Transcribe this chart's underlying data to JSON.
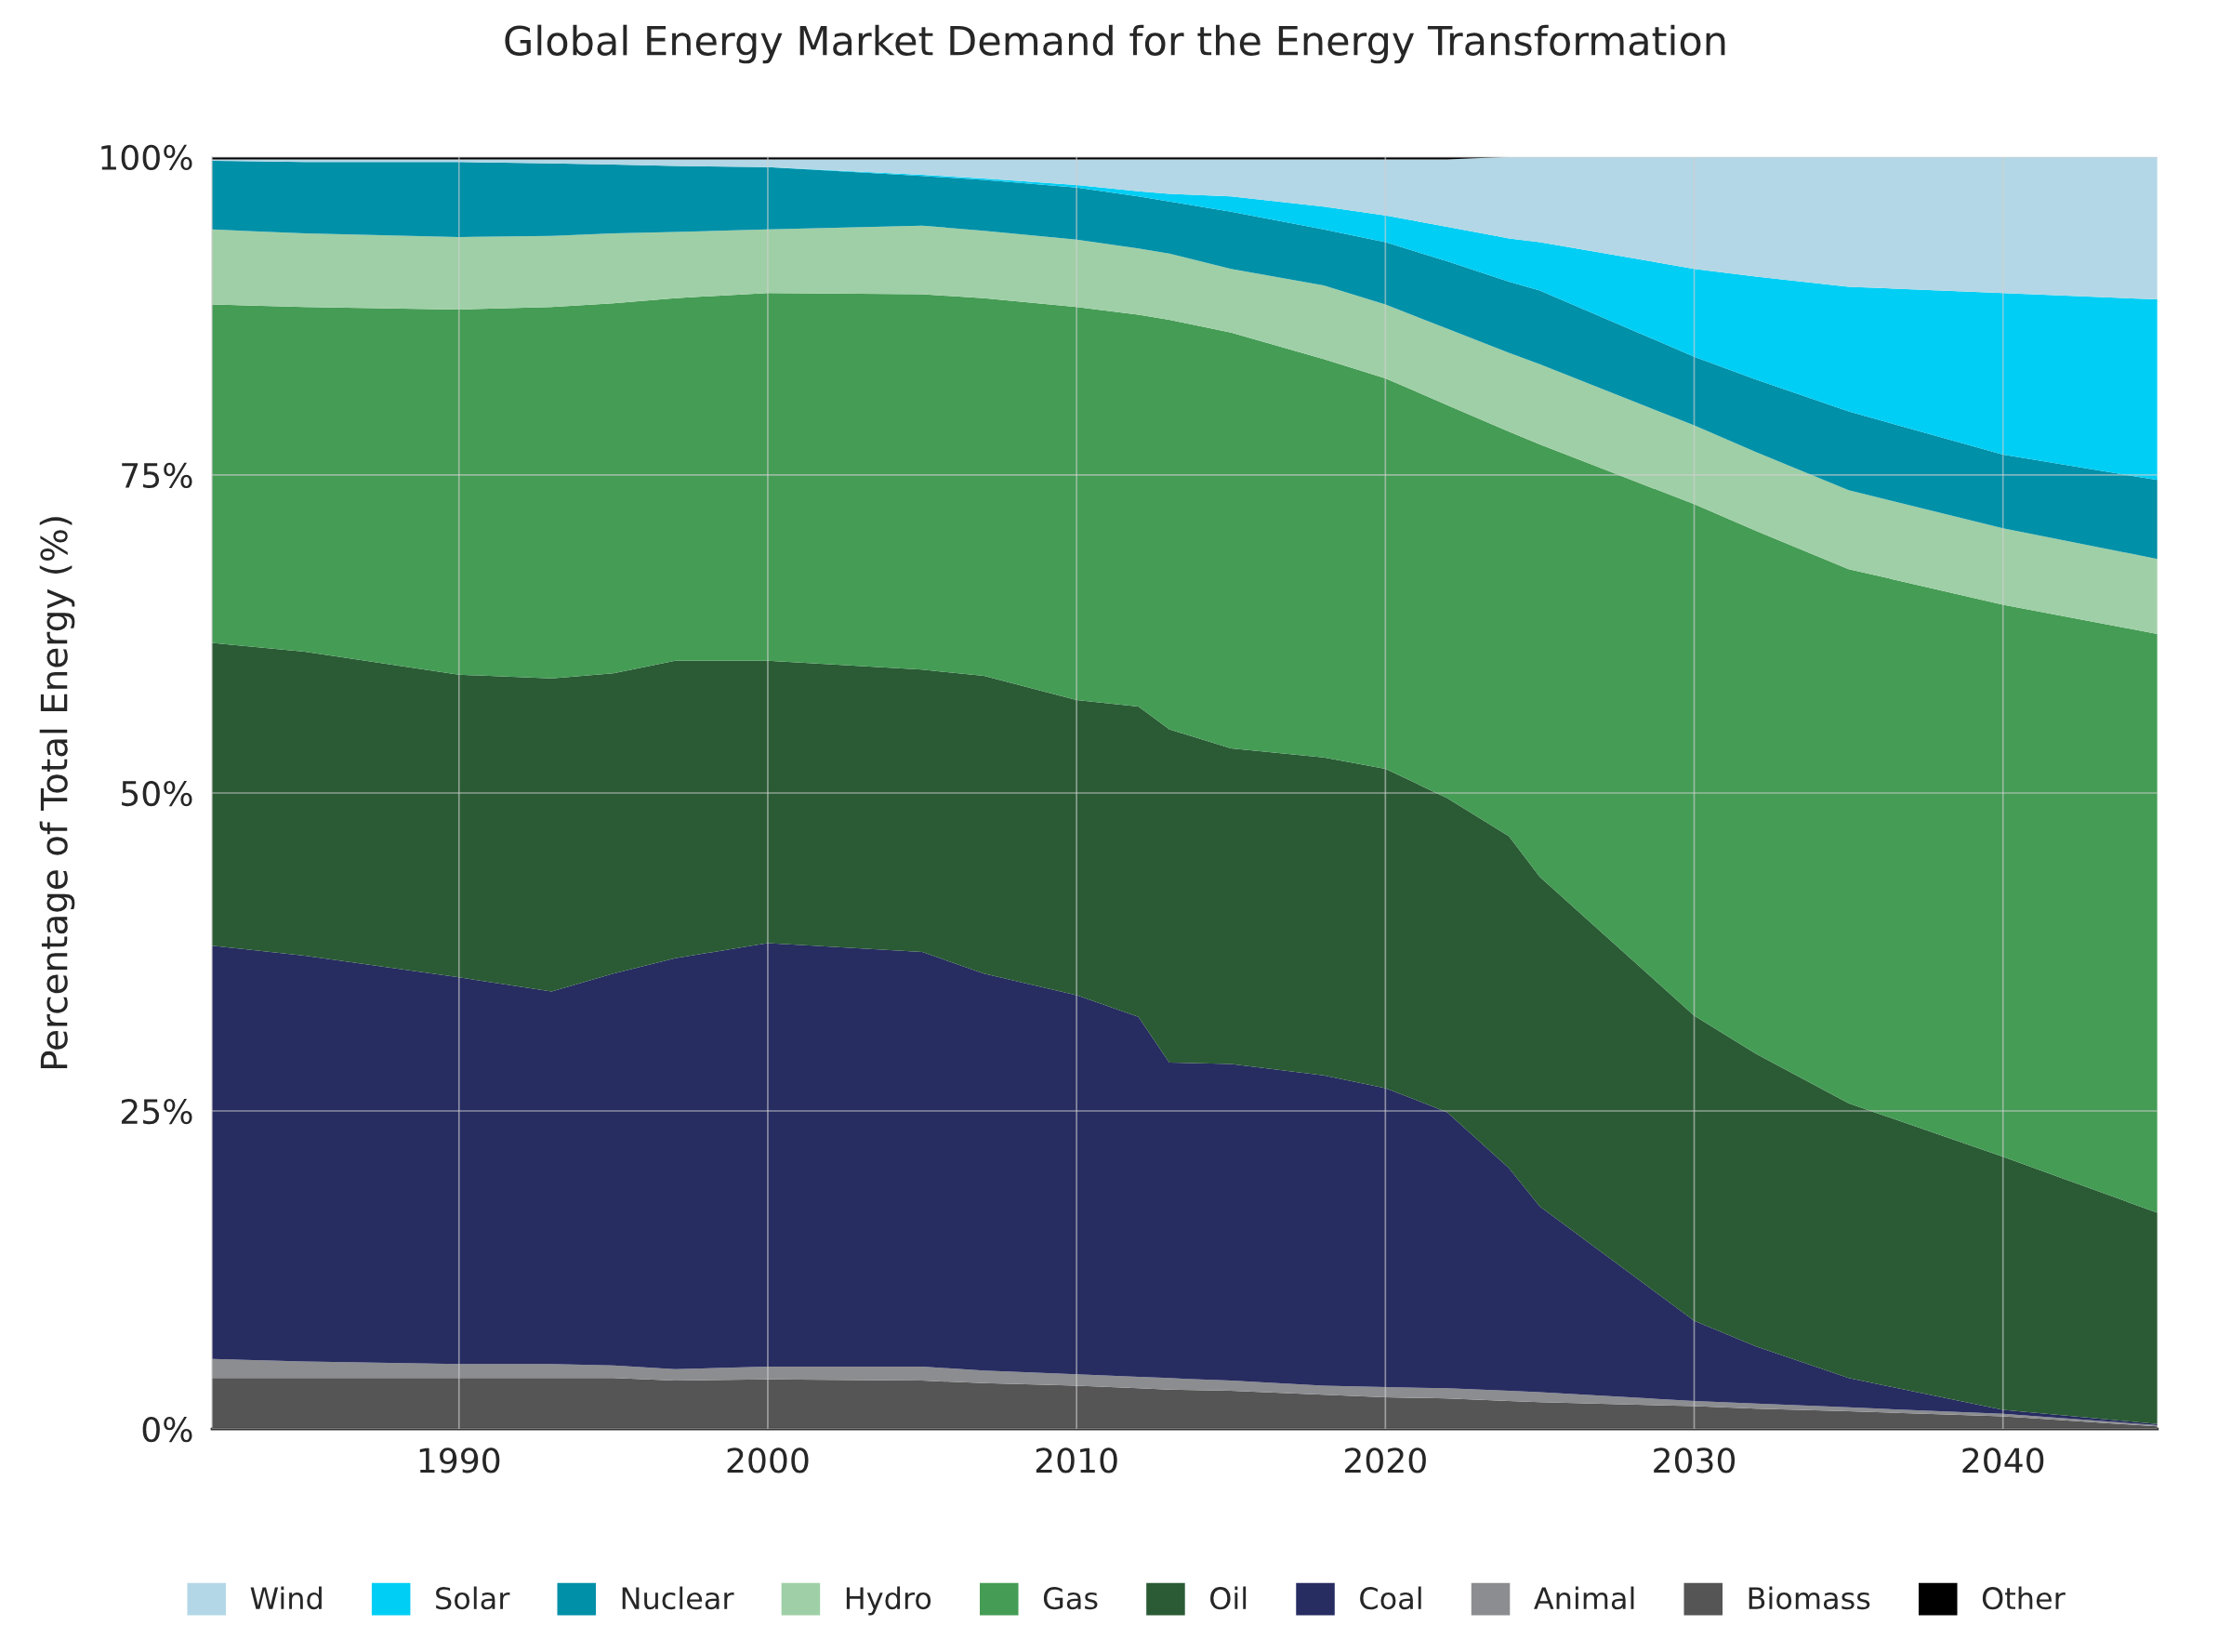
{
  "chart_data": {
    "type": "area",
    "stacked": true,
    "title": "Global Energy Market Demand for the Energy Transformation",
    "ylabel": "Percentage of Total Energy (%)",
    "x": [
      1982,
      1985,
      1990,
      1993,
      1995,
      1997,
      2000,
      2005,
      2007,
      2010,
      2012,
      2013,
      2015,
      2018,
      2020,
      2022,
      2024,
      2025,
      2030,
      2032,
      2035,
      2040,
      2045
    ],
    "xlim": [
      1982,
      2045
    ],
    "xticks": [
      1990,
      2000,
      2010,
      2020,
      2030,
      2040
    ],
    "ylim": [
      0,
      100
    ],
    "yticks": [
      {
        "value": 0,
        "label": "0%"
      },
      {
        "value": 25,
        "label": "25%"
      },
      {
        "value": 50,
        "label": "50%"
      },
      {
        "value": 75,
        "label": "75%"
      },
      {
        "value": 100,
        "label": "100%"
      }
    ],
    "grid": true,
    "legend": "bottom",
    "series": [
      {
        "name": "Biomass",
        "color": "#555555",
        "values": [
          4.0,
          4.0,
          4.0,
          4.0,
          4.0,
          3.8,
          3.9,
          3.8,
          3.6,
          3.4,
          3.2,
          3.1,
          3.0,
          2.7,
          2.5,
          2.4,
          2.2,
          2.1,
          1.8,
          1.6,
          1.4,
          1.0,
          0.2
        ]
      },
      {
        "name": "Animal",
        "color": "#8c8d90",
        "values": [
          1.5,
          1.3,
          1.1,
          1.1,
          1.0,
          0.9,
          1.0,
          1.1,
          1.0,
          0.9,
          0.9,
          0.9,
          0.8,
          0.7,
          0.8,
          0.8,
          0.8,
          0.8,
          0.4,
          0.4,
          0.3,
          0.2,
          0.1
        ]
      },
      {
        "name": "Coal",
        "color": "#272c61",
        "values": [
          32.5,
          31.9,
          30.4,
          29.3,
          30.8,
          32.3,
          33.3,
          32.6,
          31.2,
          29.8,
          28.3,
          24.8,
          24.9,
          24.4,
          23.5,
          21.7,
          17.5,
          14.6,
          6.3,
          4.5,
          2.3,
          0.3,
          0.1
        ]
      },
      {
        "name": "Oil",
        "color": "#2a5b35",
        "values": [
          23.8,
          23.9,
          23.8,
          24.6,
          23.6,
          23.4,
          22.2,
          22.2,
          23.4,
          23.2,
          24.4,
          26.2,
          24.8,
          25.0,
          25.1,
          24.7,
          26.1,
          25.9,
          24.0,
          23.0,
          21.6,
          19.9,
          16.6
        ]
      },
      {
        "name": "Gas",
        "color": "#459c55",
        "values": [
          26.6,
          27.1,
          28.7,
          29.2,
          29.1,
          28.5,
          28.9,
          29.5,
          29.7,
          30.9,
          30.8,
          32.2,
          32.7,
          31.3,
          30.7,
          30.9,
          31.8,
          34.0,
          40.2,
          41.1,
          42.0,
          43.4,
          45.5
        ]
      },
      {
        "name": "Hydro",
        "color": "#9fcfa6",
        "values": [
          5.9,
          5.8,
          5.7,
          5.6,
          5.5,
          5.2,
          5.0,
          5.4,
          5.3,
          5.3,
          5.2,
          5.2,
          5.0,
          5.8,
          5.8,
          6.0,
          6.2,
          6.3,
          6.2,
          6.2,
          6.2,
          6.0,
          5.9
        ]
      },
      {
        "name": "Nuclear",
        "color": "#0090a8",
        "values": [
          5.4,
          5.6,
          5.9,
          5.7,
          5.4,
          5.2,
          4.9,
          3.9,
          4.0,
          4.1,
          4.1,
          4.1,
          4.5,
          4.4,
          4.9,
          5.3,
          5.6,
          5.8,
          5.4,
          5.7,
          6.2,
          5.8,
          6.2
        ]
      },
      {
        "name": "Solar",
        "color": "#00cef5",
        "values": [
          0,
          0,
          0,
          0,
          0,
          0,
          0,
          0.1,
          0.1,
          0.2,
          0.4,
          0.6,
          1.2,
          1.8,
          2.1,
          2.7,
          3.4,
          3.8,
          6.9,
          8.1,
          9.8,
          12.7,
          14.2
        ]
      },
      {
        "name": "Wind",
        "color": "#b3d7e6",
        "values": [
          0.1,
          0.2,
          0.2,
          0.3,
          0.4,
          0.5,
          0.6,
          1.2,
          1.5,
          2.0,
          2.5,
          2.7,
          2.9,
          3.7,
          4.4,
          5.3,
          6.4,
          6.7,
          8.8,
          9.4,
          10.2,
          10.7,
          11.2
        ]
      },
      {
        "name": "Other",
        "color": "#000000",
        "values": [
          0.2,
          0.2,
          0.2,
          0.2,
          0.2,
          0.2,
          0.2,
          0.2,
          0.2,
          0.2,
          0.2,
          0.2,
          0.2,
          0.2,
          0.2,
          0.2,
          0,
          0,
          0,
          0,
          0,
          0,
          0
        ]
      }
    ]
  }
}
